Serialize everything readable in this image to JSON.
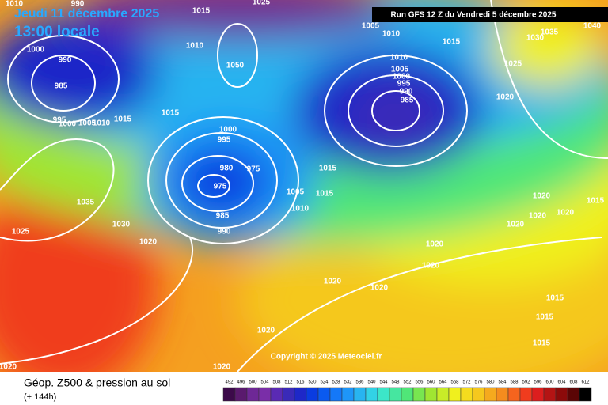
{
  "header": {
    "date": "Jeudi 11 décembre 2025",
    "time": "13:00 locale",
    "run": "Run GFS 12 Z du Vendredi 5 décembre 2025"
  },
  "footer": {
    "title": "Géop. Z500 & pression au sol",
    "lead": "(+ 144h)",
    "copyright": "Copyright © 2025 Meteociel.fr"
  },
  "isobars": [
    1010,
    990,
    1015,
    1025,
    1005,
    1010,
    1015,
    1030,
    1035,
    1040,
    1000,
    990,
    985,
    1010,
    1050,
    1010,
    1005,
    1000,
    995,
    990,
    985,
    1025,
    1020,
    1015,
    1015,
    995,
    1000,
    1005,
    1010,
    1000,
    995,
    980,
    975,
    975,
    985,
    990,
    1005,
    1010,
    1015,
    1015,
    1035,
    1030,
    1025,
    1020,
    1020,
    1020,
    1020,
    1015,
    1020,
    1020,
    1020,
    1020,
    1020,
    1015,
    1015,
    1015,
    1020,
    1020,
    1020
  ],
  "legend": {
    "values": [
      492,
      496,
      500,
      504,
      508,
      512,
      516,
      520,
      524,
      528,
      532,
      536,
      540,
      544,
      548,
      552,
      556,
      560,
      564,
      568,
      572,
      576,
      580,
      584,
      588,
      592,
      596,
      600,
      604,
      608,
      612
    ],
    "colors": [
      "#3c0a4a",
      "#5a1a6e",
      "#6e2896",
      "#7a2ea8",
      "#5a2ab4",
      "#3a2ab8",
      "#1e28c8",
      "#0a3ce0",
      "#0a5af0",
      "#1478f8",
      "#1e96f8",
      "#28b4f0",
      "#32d2e6",
      "#3ce6c8",
      "#46e6a0",
      "#50e678",
      "#78e650",
      "#a0e632",
      "#c8ec28",
      "#f0f01e",
      "#f5dc1e",
      "#f5c81e",
      "#f5aa1e",
      "#f58c1e",
      "#f5641e",
      "#f03c1e",
      "#dc1e1e",
      "#b41414",
      "#8c0a0a",
      "#5a0505",
      "#000000"
    ]
  }
}
